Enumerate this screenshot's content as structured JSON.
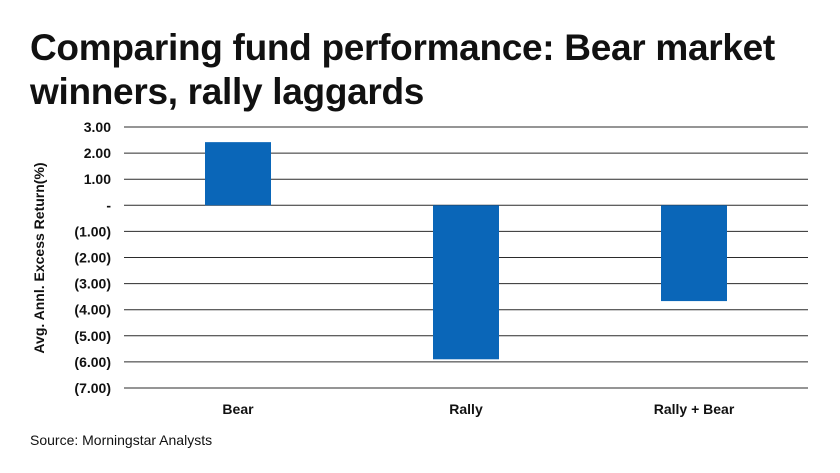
{
  "title": "Comparing fund performance: Bear market winners, rally laggards",
  "source": "Source: Morningstar Analysts",
  "colors": {
    "bar": "#0a66b8",
    "grid": "#2b2b2b",
    "text": "#111111"
  },
  "chart_data": {
    "type": "bar",
    "categories": [
      "Bear",
      "Rally",
      "Rally + Bear"
    ],
    "values": [
      2.42,
      -5.9,
      -3.67
    ],
    "ylabel": "Avg. Annl. Excess Return(%)",
    "xlabel": "",
    "ylim": [
      -7,
      3
    ],
    "yticks": [
      3,
      2,
      1,
      0,
      -1,
      -2,
      -3,
      -4,
      -5,
      -6,
      -7
    ],
    "ytick_labels": [
      "3.00",
      "2.00",
      "1.00",
      "-",
      "(1.00)",
      "(2.00)",
      "(3.00)",
      "(4.00)",
      "(5.00)",
      "(6.00)",
      "(7.00)"
    ],
    "grid": true,
    "legend": "none"
  }
}
